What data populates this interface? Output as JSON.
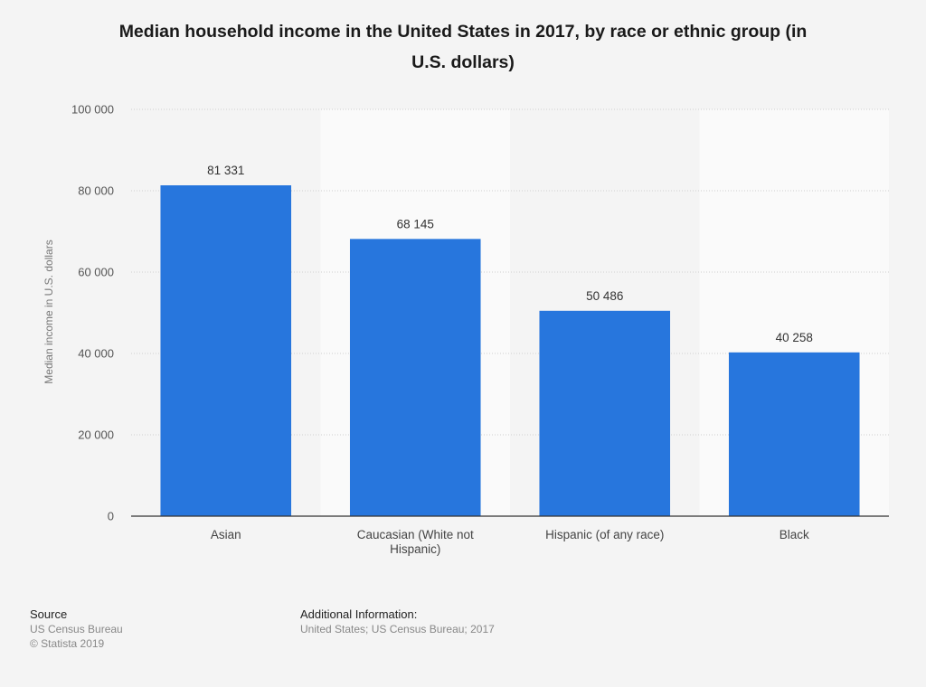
{
  "title": {
    "line1": "Median household income in the United States in 2017, by race or ethnic group (in",
    "line2": "U.S. dollars)"
  },
  "chart_data": {
    "type": "bar",
    "categories": [
      "Asian",
      "Caucasian (White not Hispanic)",
      "Hispanic (of any race)",
      "Black"
    ],
    "category_label_lines": [
      [
        "Asian"
      ],
      [
        "Caucasian (White not",
        "Hispanic)"
      ],
      [
        "Hispanic (of any race)"
      ],
      [
        "Black"
      ]
    ],
    "values": [
      81331,
      68145,
      50486,
      40258
    ],
    "value_labels": [
      "81 331",
      "68 145",
      "50 486",
      "40 258"
    ],
    "ylabel": "Median income in U.S. dollars",
    "xlabel": "",
    "ylim": [
      0,
      100000
    ],
    "yticks": [
      0,
      20000,
      40000,
      60000,
      80000,
      100000
    ],
    "ytick_labels": [
      "0",
      "20 000",
      "40 000",
      "60 000",
      "80 000",
      "100 000"
    ],
    "grid": true,
    "legend": "none",
    "bar_color": "#2776dd",
    "band_color": "#fafafa"
  },
  "footer": {
    "source_heading": "Source",
    "source_lines": [
      "US Census Bureau",
      "© Statista 2019"
    ],
    "info_heading": "Additional Information:",
    "info_text": "United States; US Census Bureau; 2017"
  }
}
